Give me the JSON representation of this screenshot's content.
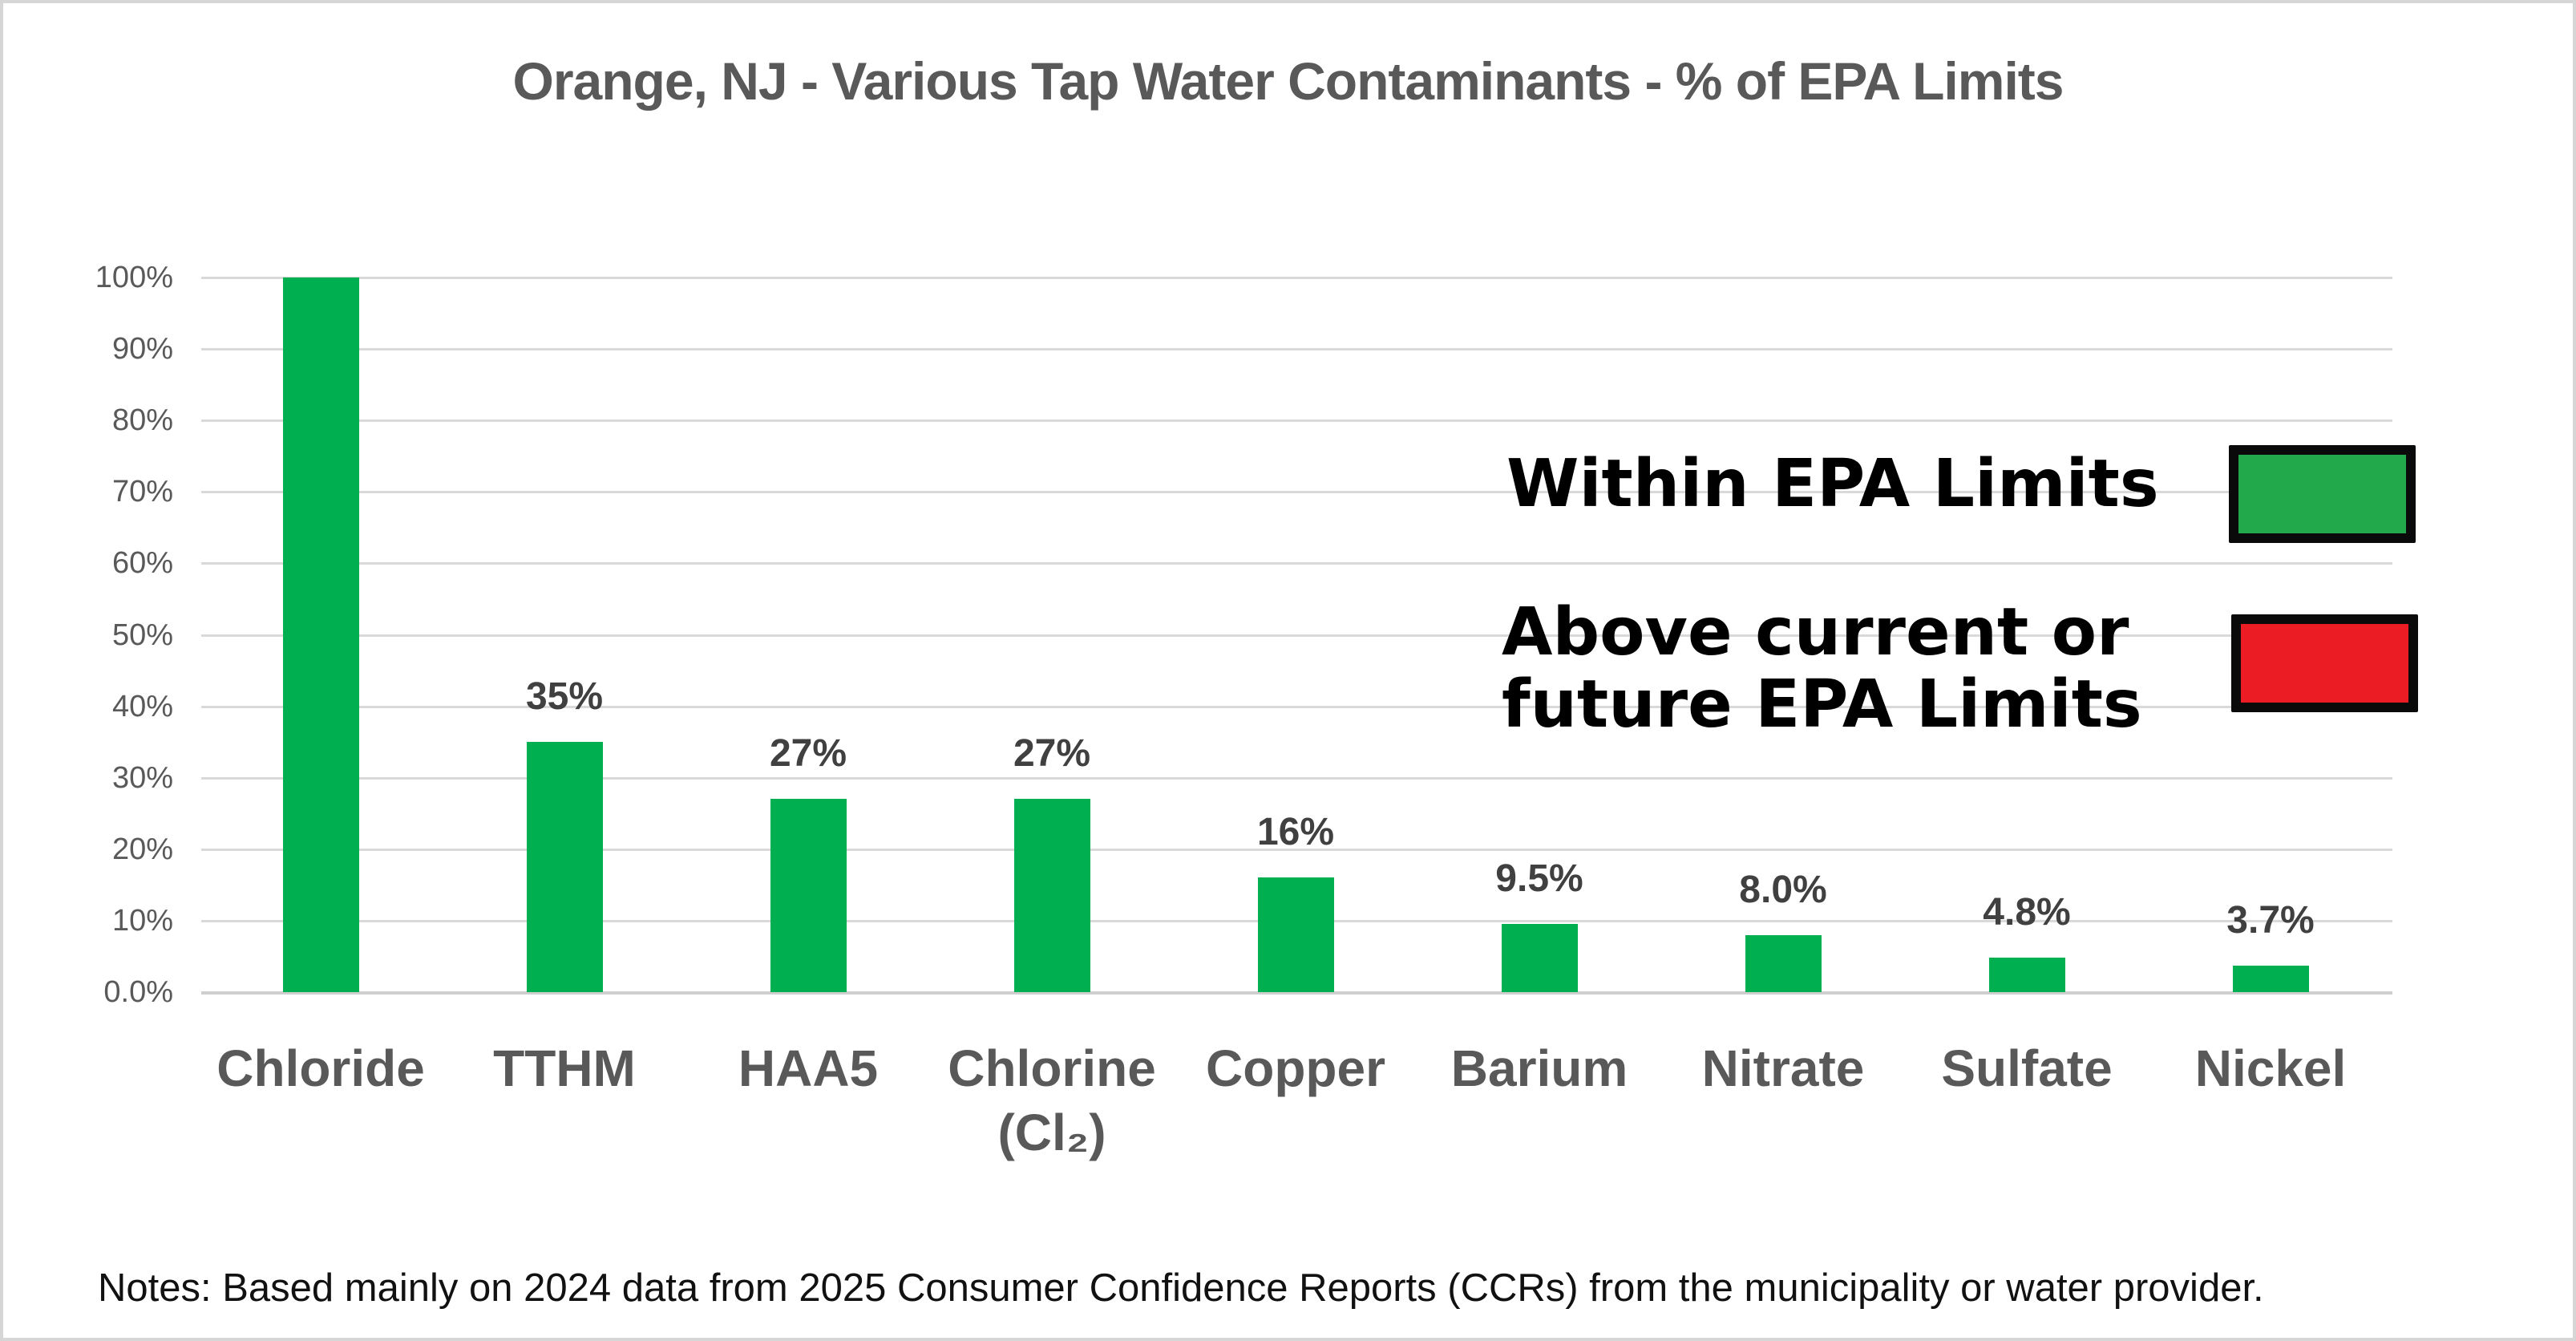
{
  "chart_data": {
    "type": "bar",
    "title": "Orange, NJ - Various Tap Water Contaminants - % of EPA Limits",
    "categories": [
      "Chloride",
      "TTHM",
      "HAA5",
      "Chlorine\n(Cl₂)",
      "Copper",
      "Barium",
      "Nitrate",
      "Sulfate",
      "Nickel"
    ],
    "values": [
      100,
      35,
      27,
      27,
      16,
      9.5,
      8.0,
      4.8,
      3.7
    ],
    "data_labels": [
      "",
      "35%",
      "27%",
      "27%",
      "16%",
      "9.5%",
      "8.0%",
      "4.8%",
      "3.7%"
    ],
    "ylim": [
      0,
      100
    ],
    "ytick_labels": [
      "100%",
      "90%",
      "80%",
      "70%",
      "60%",
      "50%",
      "40%",
      "30%",
      "20%",
      "10%",
      "0.0%"
    ],
    "ytick_values": [
      100,
      90,
      80,
      70,
      60,
      50,
      40,
      30,
      20,
      10,
      0
    ],
    "grid": "horizontal",
    "legend_position": "right-middle",
    "xlabel": "",
    "ylabel": "",
    "notes": "Notes: Based mainly on 2024 data from 2025 Consumer Confidence Reports (CCRs) from the municipality or water provider."
  },
  "colors": {
    "bar_green": "#00B050",
    "legend_green": "#22A94C",
    "legend_red": "#EC1C24",
    "axis_text": "#595959",
    "data_label": "#404040",
    "gridline": "#D9D9D9"
  },
  "legend": {
    "items": [
      {
        "label": "Within EPA Limits",
        "color": "#22A94C"
      },
      {
        "label": "Above current or\nfuture EPA Limits",
        "color": "#EC1C24"
      }
    ]
  }
}
